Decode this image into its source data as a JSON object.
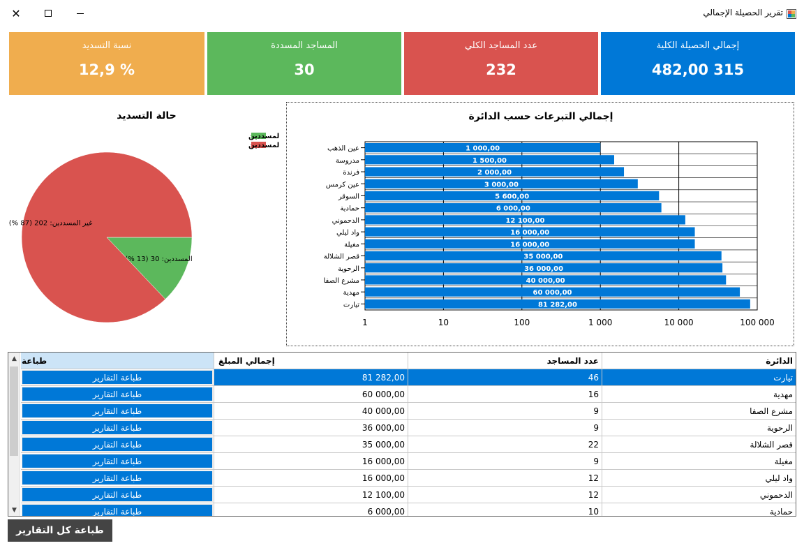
{
  "window": {
    "title": "تقرير الحصيلة الإجمالي"
  },
  "colors": {
    "blue": "#0078d7",
    "red": "#d9534f",
    "green": "#5cb85c",
    "orange": "#f0ad4e",
    "dark": "#444444"
  },
  "cards": [
    {
      "label": "إجمالي الحصيلة الكلية",
      "value": "315 482,00",
      "color": "#0078d7"
    },
    {
      "label": "عدد المساجد الكلي",
      "value": "232",
      "color": "#d9534f"
    },
    {
      "label": "المساجد المسددة",
      "value": "30",
      "color": "#5cb85c"
    },
    {
      "label": "نسبة التسديد",
      "value": "% 12,9",
      "color": "#f0ad4e"
    }
  ],
  "charts": {
    "bar_title": "إجمالي التبرعات حسب الدائرة",
    "pie_title": "حالة التسديد"
  },
  "chart_data": [
    {
      "type": "bar",
      "orientation": "horizontal",
      "title": "إجمالي التبرعات حسب الدائرة",
      "x_scale": "log",
      "xlim": [
        1,
        100000
      ],
      "x_ticks": [
        "1",
        "10",
        "100",
        "1 000",
        "10 000",
        "100 000"
      ],
      "grid": true,
      "categories": [
        "عين الذهب",
        "مدروسة",
        "فرندة",
        "عين كرمس",
        "السوقر",
        "حمادية",
        "الدحموني",
        "واد ليلي",
        "مغيلة",
        "قصر الشلالة",
        "الرحوية",
        "مشرع الصفا",
        "مهدية",
        "تيارت"
      ],
      "values": [
        1000,
        1500,
        2000,
        3000,
        5600,
        6000,
        12100,
        16000,
        16000,
        35000,
        36000,
        40000,
        60000,
        81282
      ],
      "data_labels": [
        "1 000,00",
        "1 500,00",
        "2 000,00",
        "3 000,00",
        "5 600,00",
        "6 000,00",
        "12 100,00",
        "16 000,00",
        "16 000,00",
        "35 000,00",
        "36 000,00",
        "40 000,00",
        "60 000,00",
        "81 282,00"
      ],
      "color": "#0078d7"
    },
    {
      "type": "pie",
      "title": "حالة التسديد",
      "legend_position": "top-right",
      "slices": [
        {
          "name": "المسددين",
          "value": 30,
          "label": "المسددين: 30 (13 %)",
          "color": "#5cb85c"
        },
        {
          "name": "غير المسددين",
          "value": 202,
          "label": "غير المسددين: 202 (87 %)",
          "color": "#d9534f"
        }
      ]
    }
  ],
  "table": {
    "columns": [
      "الدائرة",
      "عدد المساجد",
      "إجمالي المبلغ",
      "طباعة"
    ],
    "button_label": "طباعة التقارير",
    "rows": [
      {
        "district": "تيارت",
        "count": "46",
        "amount": "81 282,00",
        "selected": true
      },
      {
        "district": "مهدية",
        "count": "16",
        "amount": "60 000,00"
      },
      {
        "district": "مشرع الصفا",
        "count": "9",
        "amount": "40 000,00"
      },
      {
        "district": "الرحوية",
        "count": "9",
        "amount": "36 000,00"
      },
      {
        "district": "قصر الشلالة",
        "count": "22",
        "amount": "35 000,00"
      },
      {
        "district": "مغيلة",
        "count": "9",
        "amount": "16 000,00"
      },
      {
        "district": "واد ليلي",
        "count": "12",
        "amount": "16 000,00"
      },
      {
        "district": "الدحموني",
        "count": "12",
        "amount": "12 100,00"
      },
      {
        "district": "حمادية",
        "count": "10",
        "amount": "6 000,00"
      }
    ]
  },
  "footer": {
    "print_all_label": "طباعة كل التقارير"
  }
}
